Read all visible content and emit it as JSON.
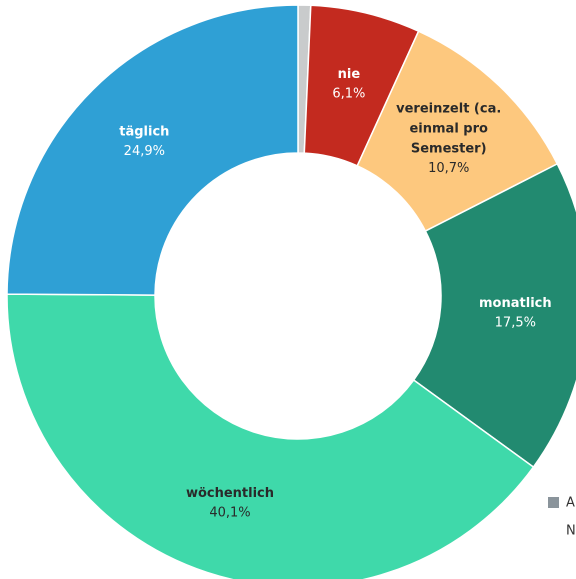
{
  "chart_data": {
    "type": "donut",
    "categories": [
      null,
      "nie",
      "vereinzelt (ca. einmal pro Semester)",
      "monatlich",
      "wöchentlich",
      "täglich"
    ],
    "values": [
      0.7,
      6.1,
      10.7,
      17.5,
      40.1,
      24.9
    ],
    "value_labels": [
      null,
      "6,1%",
      "10,7%",
      "17,5%",
      "40,1%",
      "24,9%"
    ],
    "colors": [
      "#c9cbcc",
      "#c32a1f",
      "#fdc87e",
      "#228a70",
      "#3fd9aa",
      "#2fa0d5"
    ],
    "label_colors": [
      null,
      "#ffffff",
      "#2a2a2a",
      "#ffffff",
      "#2a2a2a",
      "#ffffff"
    ],
    "legend": {
      "color": "#8a949b",
      "lines": [
        "A",
        "N"
      ]
    }
  }
}
